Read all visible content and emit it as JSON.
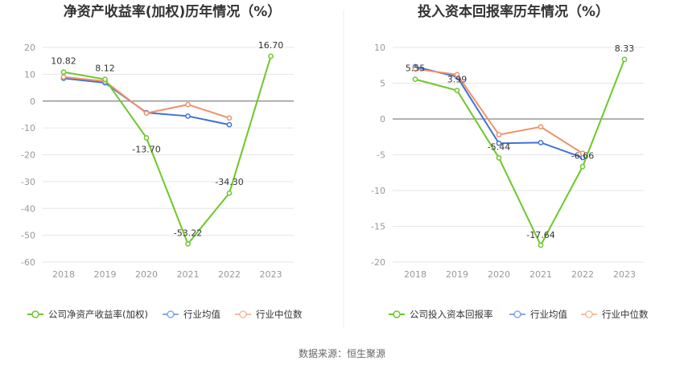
{
  "source": "数据来源：恒生聚源",
  "colors": {
    "company": "#6ec72d",
    "average": "#3f72d6",
    "median": "#f0916a",
    "grid": "#e6e6e6",
    "axis": "#666666"
  },
  "chart_data": [
    {
      "type": "line",
      "title": "净资产收益率(加权)历年情况（%）",
      "categories": [
        "2018",
        "2019",
        "2020",
        "2021",
        "2022",
        "2023"
      ],
      "ylim": [
        -60,
        20
      ],
      "yticks": [
        20,
        10,
        0,
        -10,
        -20,
        -30,
        -40,
        -50,
        -60
      ],
      "grid": true,
      "legend_position": "bottom",
      "series": [
        {
          "name": "公司净资产收益率(加权)",
          "values": [
            10.82,
            8.12,
            -13.7,
            -53.22,
            -34.3,
            16.7
          ],
          "labeled": true
        },
        {
          "name": "行业均值",
          "values": [
            8.5,
            6.8,
            -4.3,
            -5.6,
            -8.8,
            null
          ],
          "labeled": false
        },
        {
          "name": "行业中位数",
          "values": [
            9.0,
            7.4,
            -4.5,
            -1.3,
            -6.3,
            null
          ],
          "labeled": false
        }
      ],
      "data_labels": [
        "10.82",
        "8.12",
        "-13.70",
        "-53.22",
        "-34.30",
        "16.70"
      ]
    },
    {
      "type": "line",
      "title": "投入资本回报率历年情况（%）",
      "categories": [
        "2018",
        "2019",
        "2020",
        "2021",
        "2022",
        "2023"
      ],
      "ylim": [
        -20,
        10
      ],
      "yticks": [
        10,
        5,
        0,
        -5,
        -10,
        -15,
        -20
      ],
      "grid": true,
      "legend_position": "bottom",
      "series": [
        {
          "name": "公司投入资本回报率",
          "values": [
            5.55,
            3.99,
            -5.44,
            -17.64,
            -6.66,
            8.33
          ],
          "labeled": true
        },
        {
          "name": "行业均值",
          "values": [
            7.3,
            5.9,
            -3.4,
            -3.3,
            -5.4,
            null
          ],
          "labeled": false
        },
        {
          "name": "行业中位数",
          "values": [
            7.0,
            6.2,
            -2.2,
            -1.1,
            -4.8,
            null
          ],
          "labeled": false
        }
      ],
      "data_labels": [
        "5.55",
        "3.99",
        "-5.44",
        "-17.64",
        "-6.66",
        "8.33"
      ]
    }
  ]
}
